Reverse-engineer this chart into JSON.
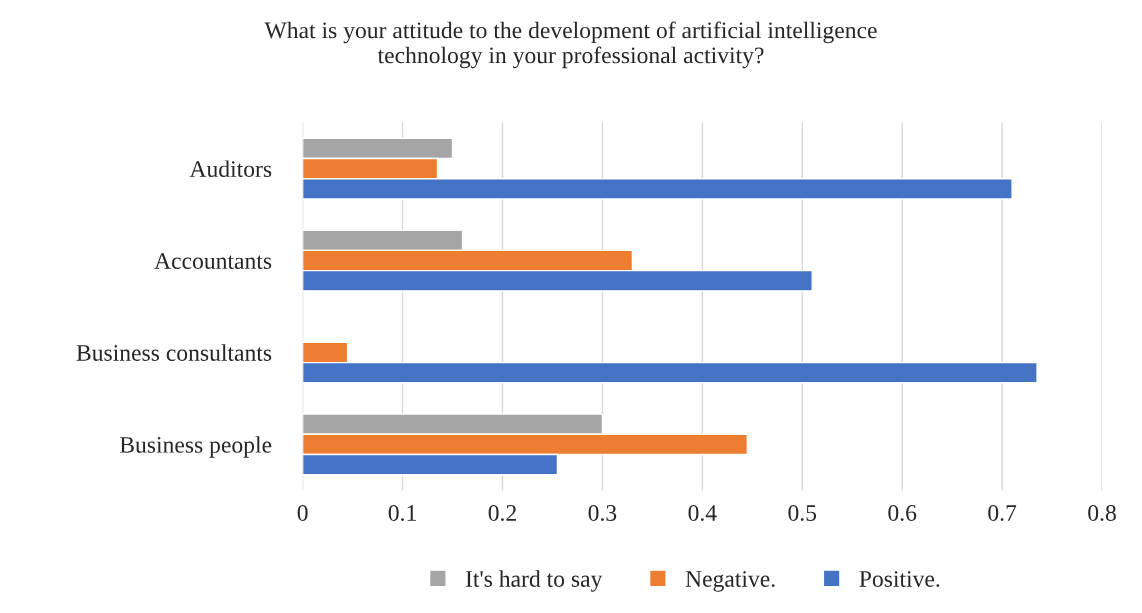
{
  "chart_data": {
    "type": "bar",
    "orientation": "horizontal",
    "title": "What is your attitude to the development of artificial intelligence\ntechnology in your professional activity?",
    "categories": [
      "Auditors",
      "Accountants",
      "Business consultants",
      "Business people"
    ],
    "series": [
      {
        "name": "It's hard to say",
        "color": "#a5a5a5",
        "values": [
          0.15,
          0.16,
          null,
          0.3
        ]
      },
      {
        "name": "Negative.",
        "color": "#ed7d31",
        "values": [
          0.135,
          0.33,
          0.045,
          0.445
        ]
      },
      {
        "name": "Positive.",
        "color": "#4472c4",
        "values": [
          0.71,
          0.51,
          0.735,
          0.255
        ]
      }
    ],
    "xlim": [
      0,
      0.8
    ],
    "xticks": [
      0,
      0.1,
      0.2,
      0.3,
      0.4,
      0.5,
      0.6,
      0.7,
      0.8
    ],
    "grid": "x",
    "legend": "bottom"
  }
}
